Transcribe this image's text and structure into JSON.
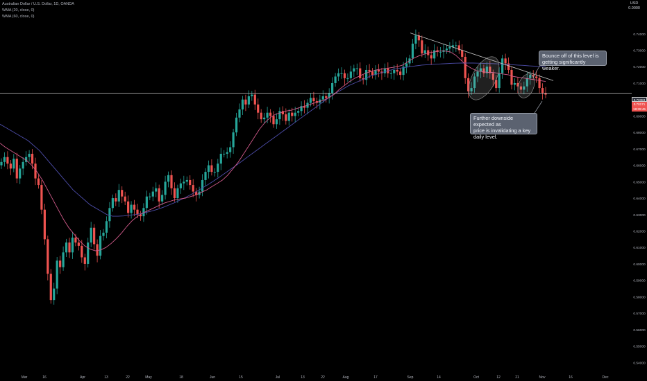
{
  "header": {
    "symbol_line": "Australian Dollar / U.S. Dollar, 1D, OANDA",
    "indicator_1": "WMA (20, close, 0)",
    "indicator_2": "WMA (60, close, 0)",
    "currency": "USD",
    "currency_sub": "0.0000"
  },
  "price_tags": {
    "current": "0.70383",
    "tag_2": "0.70171",
    "tag_3": "18:39:45"
  },
  "annotations": {
    "callout_top": "Bounce off of this level is\ngetting significantly weaker.",
    "callout_bottom": "Further downside expected as\nprice is invalidating a key\ndaily level."
  },
  "colors": {
    "background": "#000000",
    "up": "#26a69a",
    "down": "#ef5350",
    "wma20": "#d05a8a",
    "wma60": "#4c4ca8",
    "line": "#c8c8c8"
  },
  "chart_data": {
    "type": "candlestick",
    "title": "Australian Dollar / U.S. Dollar, 1D, OANDA",
    "y_axis_labels": [
      "0.74000",
      "0.73000",
      "0.72000",
      "0.71000",
      "0.70000",
      "0.69000",
      "0.68000",
      "0.67000",
      "0.66000",
      "0.65000",
      "0.64000",
      "0.63000",
      "0.62000",
      "0.61000",
      "0.60000",
      "0.59000",
      "0.58000",
      "0.57000",
      "0.56000",
      "0.55000",
      "0.54000"
    ],
    "x_axis_labels": [
      "Mar",
      "16",
      "Apr",
      "13",
      "22",
      "May",
      "18",
      "Jun",
      "15",
      "Jul",
      "13",
      "22",
      "Aug",
      "17",
      "Sep",
      "14",
      "Oct",
      "12",
      "21",
      "Nov",
      "16",
      "Dec"
    ],
    "ylim": [
      0.5355,
      0.7555
    ],
    "horizontal_level": 0.70383,
    "trendline": [
      {
        "day": 0,
        "price": 0.7405
      },
      {
        "day": 0,
        "price": 0.7115
      }
    ],
    "candles_close": [
      0.662,
      0.665,
      0.661,
      0.658,
      0.664,
      0.652,
      0.658,
      0.662,
      0.665,
      0.667,
      0.661,
      0.652,
      0.648,
      0.633,
      0.615,
      0.594,
      0.578,
      0.585,
      0.602,
      0.598,
      0.607,
      0.613,
      0.607,
      0.616,
      0.613,
      0.611,
      0.604,
      0.6,
      0.613,
      0.622,
      0.612,
      0.605,
      0.617,
      0.619,
      0.626,
      0.634,
      0.64,
      0.638,
      0.645,
      0.641,
      0.638,
      0.631,
      0.636,
      0.633,
      0.63,
      0.629,
      0.634,
      0.641,
      0.641,
      0.644,
      0.646,
      0.638,
      0.642,
      0.65,
      0.654,
      0.646,
      0.64,
      0.646,
      0.649,
      0.65,
      0.651,
      0.648,
      0.644,
      0.642,
      0.644,
      0.651,
      0.656,
      0.66,
      0.656,
      0.656,
      0.661,
      0.667,
      0.667,
      0.668,
      0.671,
      0.68,
      0.689,
      0.694,
      0.7,
      0.697,
      0.702,
      0.703,
      0.697,
      0.692,
      0.688,
      0.689,
      0.692,
      0.69,
      0.685,
      0.688,
      0.693,
      0.691,
      0.687,
      0.692,
      0.69,
      0.692,
      0.693,
      0.696,
      0.695,
      0.698,
      0.701,
      0.699,
      0.698,
      0.7,
      0.702,
      0.701,
      0.704,
      0.71,
      0.714,
      0.716,
      0.716,
      0.713,
      0.713,
      0.717,
      0.719,
      0.719,
      0.713,
      0.712,
      0.718,
      0.717,
      0.715,
      0.718,
      0.717,
      0.716,
      0.719,
      0.716,
      0.716,
      0.718,
      0.717,
      0.715,
      0.72,
      0.722,
      0.725,
      0.734,
      0.739,
      0.736,
      0.728,
      0.73,
      0.727,
      0.725,
      0.73,
      0.729,
      0.729,
      0.73,
      0.731,
      0.732,
      0.733,
      0.733,
      0.73,
      0.726,
      0.713,
      0.705,
      0.707,
      0.714,
      0.717,
      0.719,
      0.716,
      0.72,
      0.716,
      0.712,
      0.707,
      0.716,
      0.725,
      0.722,
      0.718,
      0.709,
      0.71,
      0.708,
      0.706,
      0.708,
      0.713,
      0.715,
      0.714,
      0.713,
      0.707,
      0.704,
      0.703
    ],
    "candles_open": [
      0.66,
      0.662,
      0.665,
      0.661,
      0.658,
      0.664,
      0.652,
      0.658,
      0.662,
      0.665,
      0.667,
      0.661,
      0.652,
      0.648,
      0.633,
      0.615,
      0.594,
      0.578,
      0.585,
      0.602,
      0.598,
      0.607,
      0.613,
      0.607,
      0.616,
      0.613,
      0.611,
      0.604,
      0.6,
      0.613,
      0.622,
      0.612,
      0.605,
      0.617,
      0.619,
      0.626,
      0.634,
      0.64,
      0.638,
      0.645,
      0.641,
      0.638,
      0.631,
      0.636,
      0.633,
      0.63,
      0.629,
      0.634,
      0.641,
      0.641,
      0.644,
      0.646,
      0.638,
      0.642,
      0.65,
      0.654,
      0.646,
      0.64,
      0.646,
      0.649,
      0.65,
      0.651,
      0.648,
      0.644,
      0.642,
      0.644,
      0.651,
      0.656,
      0.66,
      0.656,
      0.656,
      0.661,
      0.667,
      0.667,
      0.668,
      0.671,
      0.68,
      0.689,
      0.694,
      0.7,
      0.697,
      0.702,
      0.703,
      0.697,
      0.692,
      0.688,
      0.689,
      0.692,
      0.69,
      0.685,
      0.688,
      0.693,
      0.691,
      0.687,
      0.692,
      0.69,
      0.692,
      0.693,
      0.696,
      0.695,
      0.698,
      0.701,
      0.699,
      0.698,
      0.7,
      0.702,
      0.701,
      0.704,
      0.71,
      0.714,
      0.716,
      0.716,
      0.713,
      0.713,
      0.717,
      0.719,
      0.719,
      0.713,
      0.712,
      0.718,
      0.717,
      0.715,
      0.718,
      0.717,
      0.716,
      0.719,
      0.716,
      0.716,
      0.718,
      0.717,
      0.715,
      0.72,
      0.722,
      0.725,
      0.734,
      0.739,
      0.736,
      0.728,
      0.73,
      0.727,
      0.725,
      0.73,
      0.729,
      0.729,
      0.73,
      0.731,
      0.732,
      0.733,
      0.733,
      0.73,
      0.726,
      0.713,
      0.705,
      0.707,
      0.714,
      0.717,
      0.719,
      0.716,
      0.72,
      0.716,
      0.712,
      0.707,
      0.716,
      0.725,
      0.722,
      0.718,
      0.709,
      0.71,
      0.708,
      0.706,
      0.708,
      0.713,
      0.715,
      0.714,
      0.713,
      0.707,
      0.704
    ],
    "wma20": [
      0.6735,
      0.671,
      0.669,
      0.667,
      0.665,
      0.663,
      0.66,
      0.656,
      0.651,
      0.645,
      0.639,
      0.633,
      0.627,
      0.622,
      0.618,
      0.614,
      0.611,
      0.609,
      0.608,
      0.6085,
      0.61,
      0.6125,
      0.6155,
      0.619,
      0.623,
      0.6265,
      0.629,
      0.631,
      0.6325,
      0.634,
      0.6355,
      0.637,
      0.638,
      0.639,
      0.6395,
      0.64,
      0.641,
      0.642,
      0.6435,
      0.645,
      0.647,
      0.649,
      0.651,
      0.654,
      0.658,
      0.662,
      0.667,
      0.672,
      0.677,
      0.682,
      0.686,
      0.689,
      0.691,
      0.692,
      0.693,
      0.6935,
      0.6945,
      0.6955,
      0.6965,
      0.6975,
      0.6985,
      0.6995,
      0.701,
      0.703,
      0.706,
      0.7085,
      0.711,
      0.713,
      0.7145,
      0.716,
      0.717,
      0.718,
      0.7185,
      0.719,
      0.7195,
      0.72,
      0.721,
      0.723,
      0.725,
      0.7265,
      0.7275,
      0.7285,
      0.729,
      0.7295,
      0.7295,
      0.729,
      0.727,
      0.724,
      0.721,
      0.719,
      0.7175,
      0.717,
      0.7165,
      0.7165,
      0.716,
      0.7155,
      0.715,
      0.714,
      0.7135,
      0.713,
      0.7125,
      0.712,
      0.7115,
      0.711
    ],
    "wma60": [
      0.685,
      0.683,
      0.681,
      0.679,
      0.677,
      0.675,
      0.672,
      0.669,
      0.665,
      0.661,
      0.657,
      0.653,
      0.649,
      0.645,
      0.642,
      0.639,
      0.636,
      0.634,
      0.632,
      0.63,
      0.629,
      0.629,
      0.6292,
      0.6296,
      0.63,
      0.6306,
      0.6314,
      0.6322,
      0.6332,
      0.6344,
      0.6358,
      0.6372,
      0.6388,
      0.6405,
      0.6423,
      0.6442,
      0.6462,
      0.6483,
      0.6505,
      0.6528,
      0.6552,
      0.6576,
      0.66,
      0.6625,
      0.665,
      0.6675,
      0.67,
      0.6725,
      0.675,
      0.6775,
      0.68,
      0.6825,
      0.685,
      0.6875,
      0.69,
      0.6925,
      0.695,
      0.6975,
      0.7,
      0.7025,
      0.7045,
      0.7065,
      0.7085,
      0.71,
      0.7115,
      0.713,
      0.7145,
      0.7155,
      0.7165,
      0.7175,
      0.7185,
      0.719,
      0.7195,
      0.72,
      0.7205,
      0.721,
      0.7212,
      0.7214,
      0.7216,
      0.7218,
      0.722,
      0.7221,
      0.7222,
      0.7222,
      0.7222,
      0.7221,
      0.722,
      0.7219,
      0.7218,
      0.7216,
      0.7214,
      0.7212,
      0.721,
      0.7208,
      0.7205,
      0.7203,
      0.72,
      0.7198
    ]
  }
}
